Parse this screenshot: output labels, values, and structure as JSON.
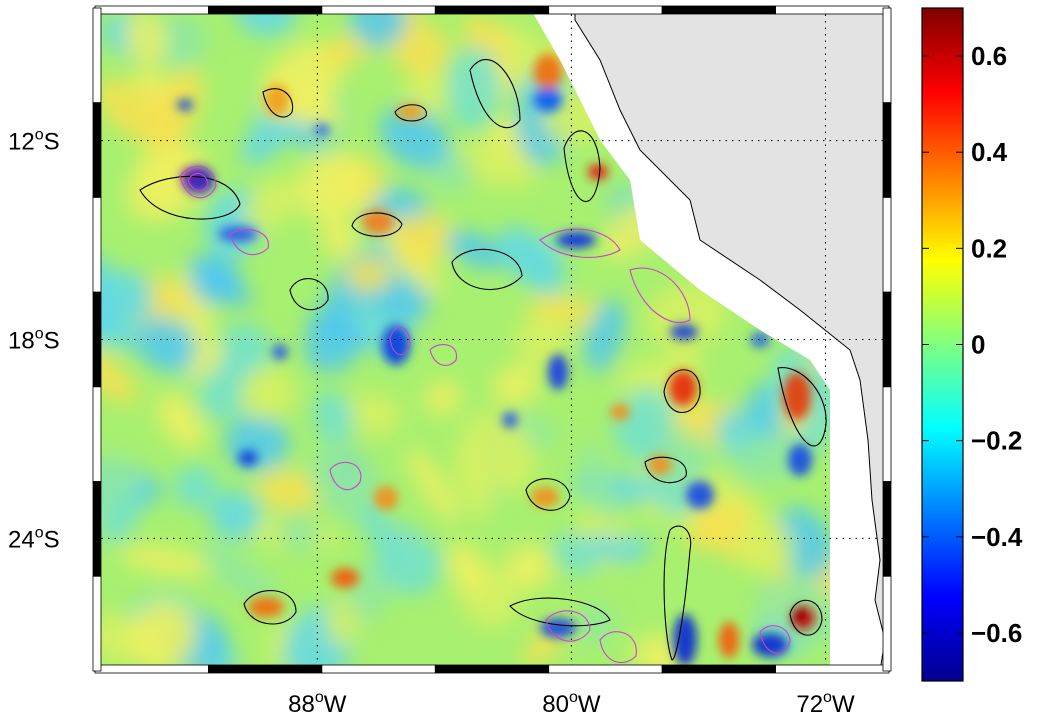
{
  "map": {
    "type": "contour-field-map",
    "region": "Southeast Pacific off Peru/Chile",
    "lon_range": [
      -95,
      -70
    ],
    "lat_range": [
      -28,
      -8
    ],
    "lat_ticks": [
      {
        "value": -12,
        "deg": "12",
        "hemi": "S"
      },
      {
        "value": -18,
        "deg": "18",
        "hemi": "S"
      },
      {
        "value": -24,
        "deg": "24",
        "hemi": "S"
      }
    ],
    "lon_ticks": [
      {
        "value": -88,
        "deg": "88",
        "hemi": "W"
      },
      {
        "value": -80,
        "deg": "80",
        "hemi": "W"
      },
      {
        "value": -72,
        "deg": "72",
        "hemi": "W"
      }
    ],
    "degree_symbol": "o",
    "grid": "dotted",
    "land_color": "#e3e3e3",
    "coastal_gap_color": "#ffffff"
  },
  "colorbar": {
    "range": [
      -0.7,
      0.7
    ],
    "colormap": "jet",
    "tick_labels": [
      "0.6",
      "0.4",
      "0.2",
      "0",
      "−0.2",
      "−0.4",
      "−0.6"
    ],
    "tick_values": [
      0.6,
      0.4,
      0.2,
      0,
      -0.2,
      -0.4,
      -0.6
    ]
  },
  "contour_colors": {
    "positive": "#000000",
    "negative": "#cc44cc"
  }
}
